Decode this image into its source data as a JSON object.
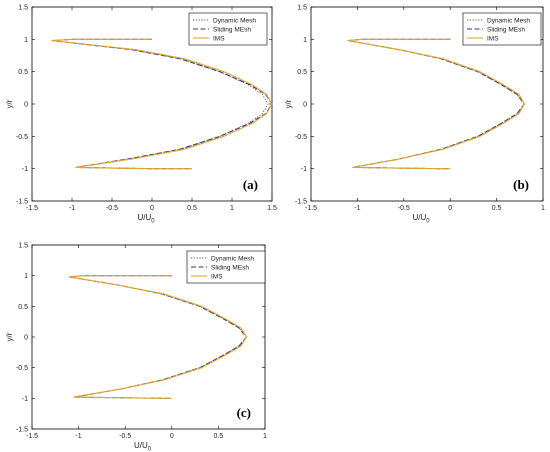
{
  "chart_data": [
    {
      "type": "line",
      "panel_label": "(a)",
      "xlabel_main": "U/U",
      "xlabel_sub": "0",
      "ylabel": "y/r",
      "xlim": [
        -1.5,
        1.5
      ],
      "ylim": [
        -1.5,
        1.5
      ],
      "xticks": [
        -1.5,
        -1,
        -0.5,
        0,
        0.5,
        1,
        1.5
      ],
      "yticks": [
        -1.5,
        -1,
        -0.5,
        0,
        0.5,
        1,
        1.5
      ],
      "legend_position": "top-right",
      "series": [
        {
          "name": "Dynamic Mesh",
          "color": "#555555",
          "x": [
            0.0,
            -1.0,
            -1.25,
            -0.25,
            0.35,
            0.85,
            1.2,
            1.38,
            1.45,
            1.38,
            1.2,
            0.85,
            0.35,
            -0.3,
            -0.95,
            0.0,
            0.5
          ],
          "y": [
            1.0,
            1.0,
            0.98,
            0.84,
            0.7,
            0.5,
            0.3,
            0.15,
            0.0,
            -0.15,
            -0.3,
            -0.5,
            -0.7,
            -0.85,
            -0.98,
            -1.0,
            -1.0
          ]
        },
        {
          "name": "Sliding MEsh",
          "color": "#2b3a8a",
          "x": [
            0.0,
            -1.0,
            -1.25,
            -0.25,
            0.35,
            0.85,
            1.22,
            1.42,
            1.5,
            1.42,
            1.22,
            0.85,
            0.35,
            -0.3,
            -0.95,
            0.0,
            0.5
          ],
          "y": [
            1.0,
            1.0,
            0.98,
            0.84,
            0.7,
            0.5,
            0.3,
            0.15,
            0.0,
            -0.15,
            -0.3,
            -0.5,
            -0.7,
            -0.85,
            -0.98,
            -1.0,
            -1.0
          ]
        },
        {
          "name": "IMS",
          "color": "#e2a52b",
          "x": [
            0.0,
            -1.0,
            -1.25,
            -0.2,
            0.4,
            0.9,
            1.25,
            1.43,
            1.5,
            1.43,
            1.25,
            0.9,
            0.4,
            -0.25,
            -0.95,
            0.0,
            0.5
          ],
          "y": [
            1.0,
            1.0,
            0.98,
            0.84,
            0.7,
            0.5,
            0.3,
            0.15,
            0.0,
            -0.15,
            -0.3,
            -0.5,
            -0.7,
            -0.85,
            -0.98,
            -1.0,
            -1.0
          ]
        }
      ]
    },
    {
      "type": "line",
      "panel_label": "(b)",
      "xlabel_main": "U/U",
      "xlabel_sub": "0",
      "ylabel": "y/r",
      "xlim": [
        -1.5,
        1.0
      ],
      "ylim": [
        -1.5,
        1.5
      ],
      "xticks": [
        -1.5,
        -1,
        -0.5,
        0,
        0.5,
        1
      ],
      "yticks": [
        -1.5,
        -1,
        -0.5,
        0,
        0.5,
        1,
        1.5
      ],
      "legend_position": "top-right",
      "series": [
        {
          "name": "Dynamic Mesh",
          "color": "#555555",
          "x": [
            0.0,
            -0.95,
            -1.1,
            -0.55,
            -0.1,
            0.3,
            0.55,
            0.72,
            0.8,
            0.72,
            0.55,
            0.3,
            -0.1,
            -0.55,
            -1.05,
            -0.1,
            0.0
          ],
          "y": [
            1.0,
            1.0,
            0.98,
            0.84,
            0.7,
            0.5,
            0.3,
            0.15,
            0.0,
            -0.15,
            -0.3,
            -0.5,
            -0.7,
            -0.85,
            -0.98,
            -1.0,
            -1.0
          ]
        },
        {
          "name": "Sliding MEsh",
          "color": "#2b3a8a",
          "x": [
            0.0,
            -0.95,
            -1.1,
            -0.55,
            -0.1,
            0.3,
            0.55,
            0.72,
            0.8,
            0.72,
            0.55,
            0.3,
            -0.1,
            -0.55,
            -1.05,
            -0.1,
            0.0
          ],
          "y": [
            1.0,
            1.0,
            0.98,
            0.84,
            0.7,
            0.5,
            0.3,
            0.15,
            0.0,
            -0.15,
            -0.3,
            -0.5,
            -0.7,
            -0.85,
            -0.98,
            -1.0,
            -1.0
          ]
        },
        {
          "name": "IMS",
          "color": "#e2a52b",
          "x": [
            0.0,
            -0.95,
            -1.1,
            -0.55,
            -0.08,
            0.32,
            0.57,
            0.74,
            0.8,
            0.74,
            0.57,
            0.32,
            -0.08,
            -0.55,
            -1.05,
            -0.1,
            0.0
          ],
          "y": [
            1.0,
            1.0,
            0.98,
            0.84,
            0.7,
            0.5,
            0.3,
            0.15,
            0.0,
            -0.15,
            -0.3,
            -0.5,
            -0.7,
            -0.85,
            -0.98,
            -1.0,
            -1.0
          ]
        }
      ]
    },
    {
      "type": "line",
      "panel_label": "(c)",
      "xlabel_main": "U/U",
      "xlabel_sub": "0",
      "ylabel": "y/r",
      "xlim": [
        -1.5,
        1.0
      ],
      "ylim": [
        -1.5,
        1.5
      ],
      "xticks": [
        -1.5,
        -1,
        -0.5,
        0,
        0.5,
        1
      ],
      "yticks": [
        -1.5,
        -1,
        -0.5,
        0,
        0.5,
        1,
        1.5
      ],
      "legend_position": "top-right",
      "series": [
        {
          "name": "Dynamic Mesh",
          "color": "#555555",
          "x": [
            0.0,
            -0.95,
            -1.1,
            -0.55,
            -0.1,
            0.3,
            0.55,
            0.72,
            0.8,
            0.72,
            0.55,
            0.3,
            -0.1,
            -0.55,
            -1.05,
            -0.1,
            0.0
          ],
          "y": [
            1.0,
            1.0,
            0.98,
            0.84,
            0.7,
            0.5,
            0.3,
            0.15,
            0.0,
            -0.15,
            -0.3,
            -0.5,
            -0.7,
            -0.85,
            -0.98,
            -1.0,
            -1.0
          ]
        },
        {
          "name": "Sliding MEsh",
          "color": "#2b3a8a",
          "x": [
            0.0,
            -0.95,
            -1.1,
            -0.55,
            -0.1,
            0.3,
            0.55,
            0.72,
            0.8,
            0.72,
            0.55,
            0.3,
            -0.1,
            -0.55,
            -1.05,
            -0.1,
            0.0
          ],
          "y": [
            1.0,
            1.0,
            0.98,
            0.84,
            0.7,
            0.5,
            0.3,
            0.15,
            0.0,
            -0.15,
            -0.3,
            -0.5,
            -0.7,
            -0.85,
            -0.98,
            -1.0,
            -1.0
          ]
        },
        {
          "name": "IMS",
          "color": "#e2a52b",
          "x": [
            0.0,
            -0.95,
            -1.1,
            -0.55,
            -0.08,
            0.32,
            0.57,
            0.74,
            0.8,
            0.74,
            0.57,
            0.32,
            -0.08,
            -0.55,
            -1.05,
            -0.1,
            0.0
          ],
          "y": [
            1.0,
            1.0,
            0.98,
            0.84,
            0.7,
            0.5,
            0.3,
            0.15,
            0.0,
            -0.15,
            -0.3,
            -0.5,
            -0.7,
            -0.85,
            -0.98,
            -1.0,
            -1.0
          ]
        }
      ]
    }
  ]
}
